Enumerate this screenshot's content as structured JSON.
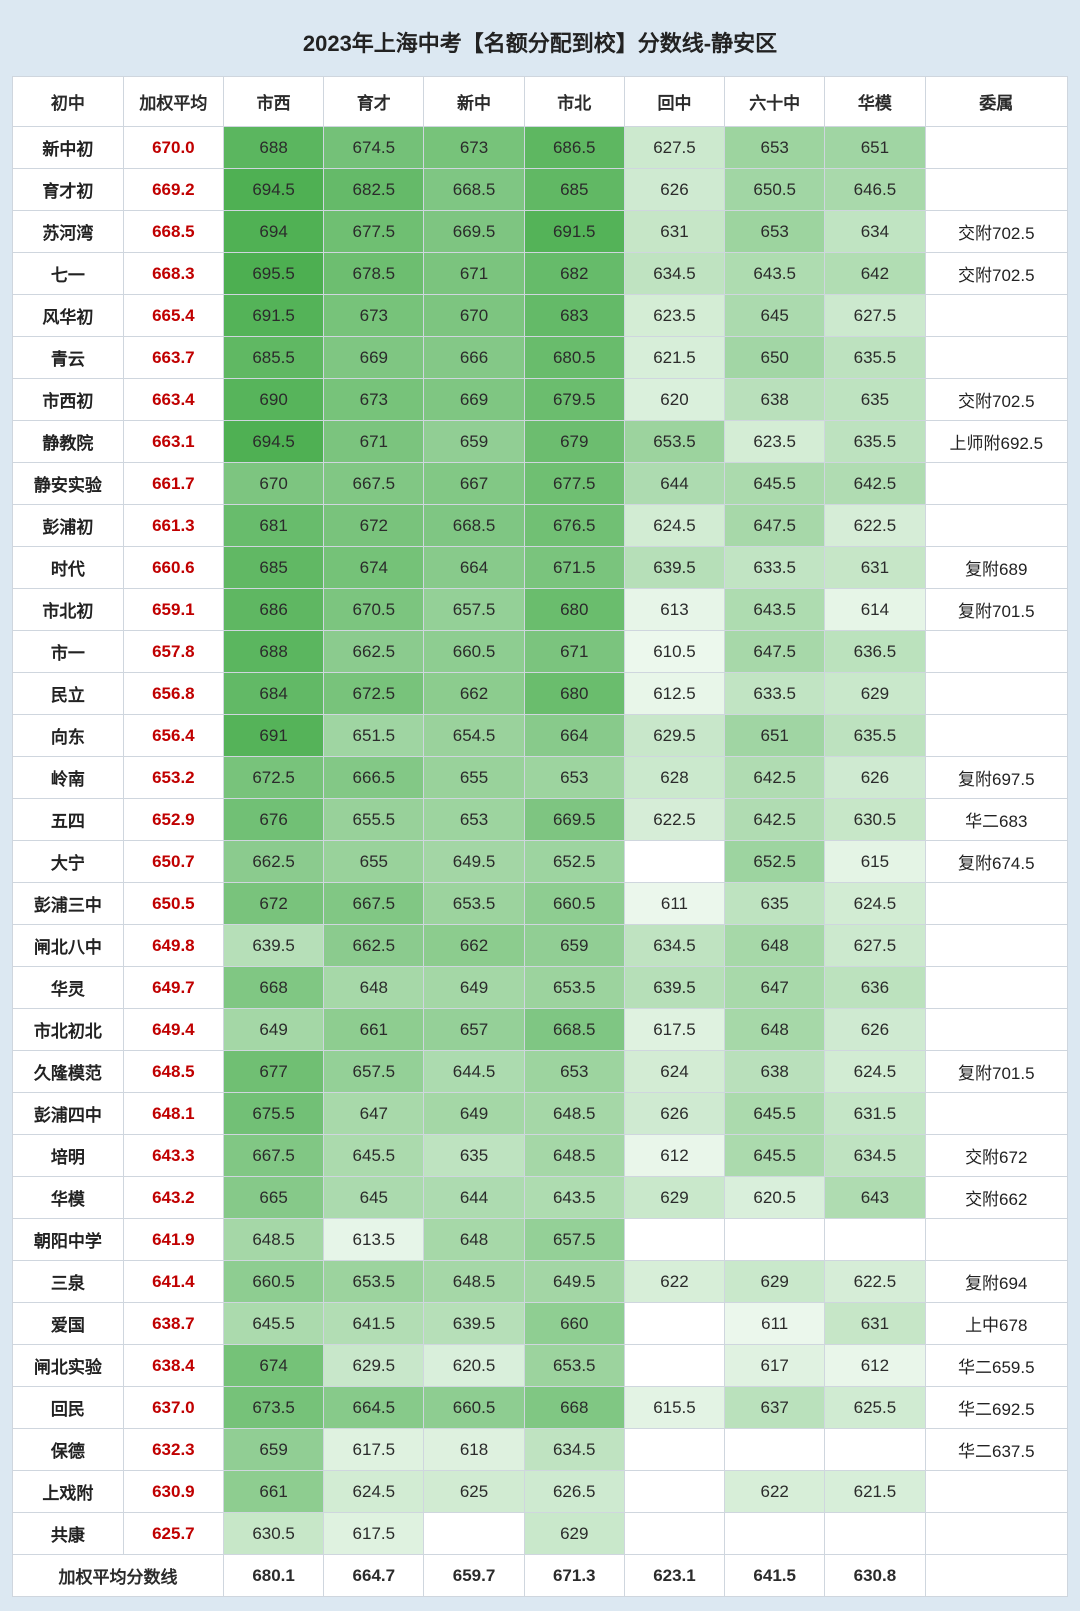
{
  "title": "2023年上海中考【名额分配到校】分数线-静安区",
  "columns": [
    "初中",
    "加权平均",
    "市西",
    "育才",
    "新中",
    "市北",
    "回中",
    "六十中",
    "华模",
    "委属"
  ],
  "heat_col_start": 2,
  "heat_col_end": 8,
  "heat": {
    "min": 610,
    "max": 696,
    "low_color": "#edf8ee",
    "high_color": "#4caf50",
    "text_color": "#2b2b2b",
    "empty_bg": "#ffffff"
  },
  "colors": {
    "page_bg": "#dce8f2",
    "border": "#cfd6de",
    "school_text": "#222222",
    "avg_text": "#c00000"
  },
  "rows": [
    {
      "school": "新中初",
      "avg": "670.0",
      "v": [
        688,
        674.5,
        673,
        686.5,
        627.5,
        653,
        651
      ],
      "note": ""
    },
    {
      "school": "育才初",
      "avg": "669.2",
      "v": [
        694.5,
        682.5,
        668.5,
        685,
        626,
        650.5,
        646.5
      ],
      "note": ""
    },
    {
      "school": "苏河湾",
      "avg": "668.5",
      "v": [
        694,
        677.5,
        669.5,
        691.5,
        631,
        653,
        634
      ],
      "note": "交附702.5"
    },
    {
      "school": "七一",
      "avg": "668.3",
      "v": [
        695.5,
        678.5,
        671,
        682,
        634.5,
        643.5,
        642
      ],
      "note": "交附702.5"
    },
    {
      "school": "风华初",
      "avg": "665.4",
      "v": [
        691.5,
        673,
        670,
        683,
        623.5,
        645,
        627.5
      ],
      "note": ""
    },
    {
      "school": "青云",
      "avg": "663.7",
      "v": [
        685.5,
        669,
        666,
        680.5,
        621.5,
        650,
        635.5
      ],
      "note": ""
    },
    {
      "school": "市西初",
      "avg": "663.4",
      "v": [
        690,
        673,
        669,
        679.5,
        620,
        638,
        635
      ],
      "note": "交附702.5"
    },
    {
      "school": "静教院",
      "avg": "663.1",
      "v": [
        694.5,
        671,
        659,
        679,
        653.5,
        623.5,
        635.5
      ],
      "note": "上师附692.5"
    },
    {
      "school": "静安实验",
      "avg": "661.7",
      "v": [
        670,
        667.5,
        667,
        677.5,
        644,
        645.5,
        642.5
      ],
      "note": ""
    },
    {
      "school": "彭浦初",
      "avg": "661.3",
      "v": [
        681,
        672,
        668.5,
        676.5,
        624.5,
        647.5,
        622.5
      ],
      "note": ""
    },
    {
      "school": "时代",
      "avg": "660.6",
      "v": [
        685,
        674,
        664,
        671.5,
        639.5,
        633.5,
        631
      ],
      "note": "复附689"
    },
    {
      "school": "市北初",
      "avg": "659.1",
      "v": [
        686,
        670.5,
        657.5,
        680,
        613,
        643.5,
        614
      ],
      "note": "复附701.5"
    },
    {
      "school": "市一",
      "avg": "657.8",
      "v": [
        688,
        662.5,
        660.5,
        671,
        610.5,
        647.5,
        636.5
      ],
      "note": ""
    },
    {
      "school": "民立",
      "avg": "656.8",
      "v": [
        684,
        672.5,
        662,
        680,
        612.5,
        633.5,
        629
      ],
      "note": ""
    },
    {
      "school": "向东",
      "avg": "656.4",
      "v": [
        691,
        651.5,
        654.5,
        664,
        629.5,
        651,
        635.5
      ],
      "note": ""
    },
    {
      "school": "岭南",
      "avg": "653.2",
      "v": [
        672.5,
        666.5,
        655,
        653,
        628,
        642.5,
        626
      ],
      "note": "复附697.5"
    },
    {
      "school": "五四",
      "avg": "652.9",
      "v": [
        676,
        655.5,
        653,
        669.5,
        622.5,
        642.5,
        630.5
      ],
      "note": "华二683"
    },
    {
      "school": "大宁",
      "avg": "650.7",
      "v": [
        662.5,
        655,
        649.5,
        652.5,
        null,
        652.5,
        615
      ],
      "note": "复附674.5"
    },
    {
      "school": "彭浦三中",
      "avg": "650.5",
      "v": [
        672,
        667.5,
        653.5,
        660.5,
        611,
        635,
        624.5
      ],
      "note": ""
    },
    {
      "school": "闸北八中",
      "avg": "649.8",
      "v": [
        639.5,
        662.5,
        662,
        659,
        634.5,
        648,
        627.5
      ],
      "note": ""
    },
    {
      "school": "华灵",
      "avg": "649.7",
      "v": [
        668,
        648,
        649,
        653.5,
        639.5,
        647,
        636
      ],
      "note": ""
    },
    {
      "school": "市北初北",
      "avg": "649.4",
      "v": [
        649,
        661,
        657,
        668.5,
        617.5,
        648,
        626
      ],
      "note": ""
    },
    {
      "school": "久隆模范",
      "avg": "648.5",
      "v": [
        677,
        657.5,
        644.5,
        653,
        624,
        638,
        624.5
      ],
      "note": "复附701.5"
    },
    {
      "school": "彭浦四中",
      "avg": "648.1",
      "v": [
        675.5,
        647,
        649,
        648.5,
        626,
        645.5,
        631.5
      ],
      "note": ""
    },
    {
      "school": "培明",
      "avg": "643.3",
      "v": [
        667.5,
        645.5,
        635,
        648.5,
        612,
        645.5,
        634.5
      ],
      "note": "交附672"
    },
    {
      "school": "华模",
      "avg": "643.2",
      "v": [
        665,
        645,
        644,
        643.5,
        629,
        620.5,
        643
      ],
      "note": "交附662"
    },
    {
      "school": "朝阳中学",
      "avg": "641.9",
      "v": [
        648.5,
        613.5,
        648,
        657.5,
        null,
        null,
        null
      ],
      "note": ""
    },
    {
      "school": "三泉",
      "avg": "641.4",
      "v": [
        660.5,
        653.5,
        648.5,
        649.5,
        622,
        629,
        622.5
      ],
      "note": "复附694"
    },
    {
      "school": "爱国",
      "avg": "638.7",
      "v": [
        645.5,
        641.5,
        639.5,
        660,
        null,
        611,
        631
      ],
      "note": "上中678"
    },
    {
      "school": "闸北实验",
      "avg": "638.4",
      "v": [
        674,
        629.5,
        620.5,
        653.5,
        null,
        617,
        612
      ],
      "note": "华二659.5"
    },
    {
      "school": "回民",
      "avg": "637.0",
      "v": [
        673.5,
        664.5,
        660.5,
        668,
        615.5,
        637,
        625.5
      ],
      "note": "华二692.5"
    },
    {
      "school": "保德",
      "avg": "632.3",
      "v": [
        659,
        617.5,
        618,
        634.5,
        null,
        null,
        null
      ],
      "note": "华二637.5"
    },
    {
      "school": "上戏附",
      "avg": "630.9",
      "v": [
        661,
        624.5,
        625,
        626.5,
        null,
        622,
        621.5
      ],
      "note": ""
    },
    {
      "school": "共康",
      "avg": "625.7",
      "v": [
        630.5,
        617.5,
        null,
        629,
        null,
        null,
        null
      ],
      "note": ""
    }
  ],
  "footer": {
    "label": "加权平均分数线",
    "values": [
      "680.1",
      "664.7",
      "659.7",
      "671.3",
      "623.1",
      "641.5",
      "630.8",
      ""
    ]
  }
}
